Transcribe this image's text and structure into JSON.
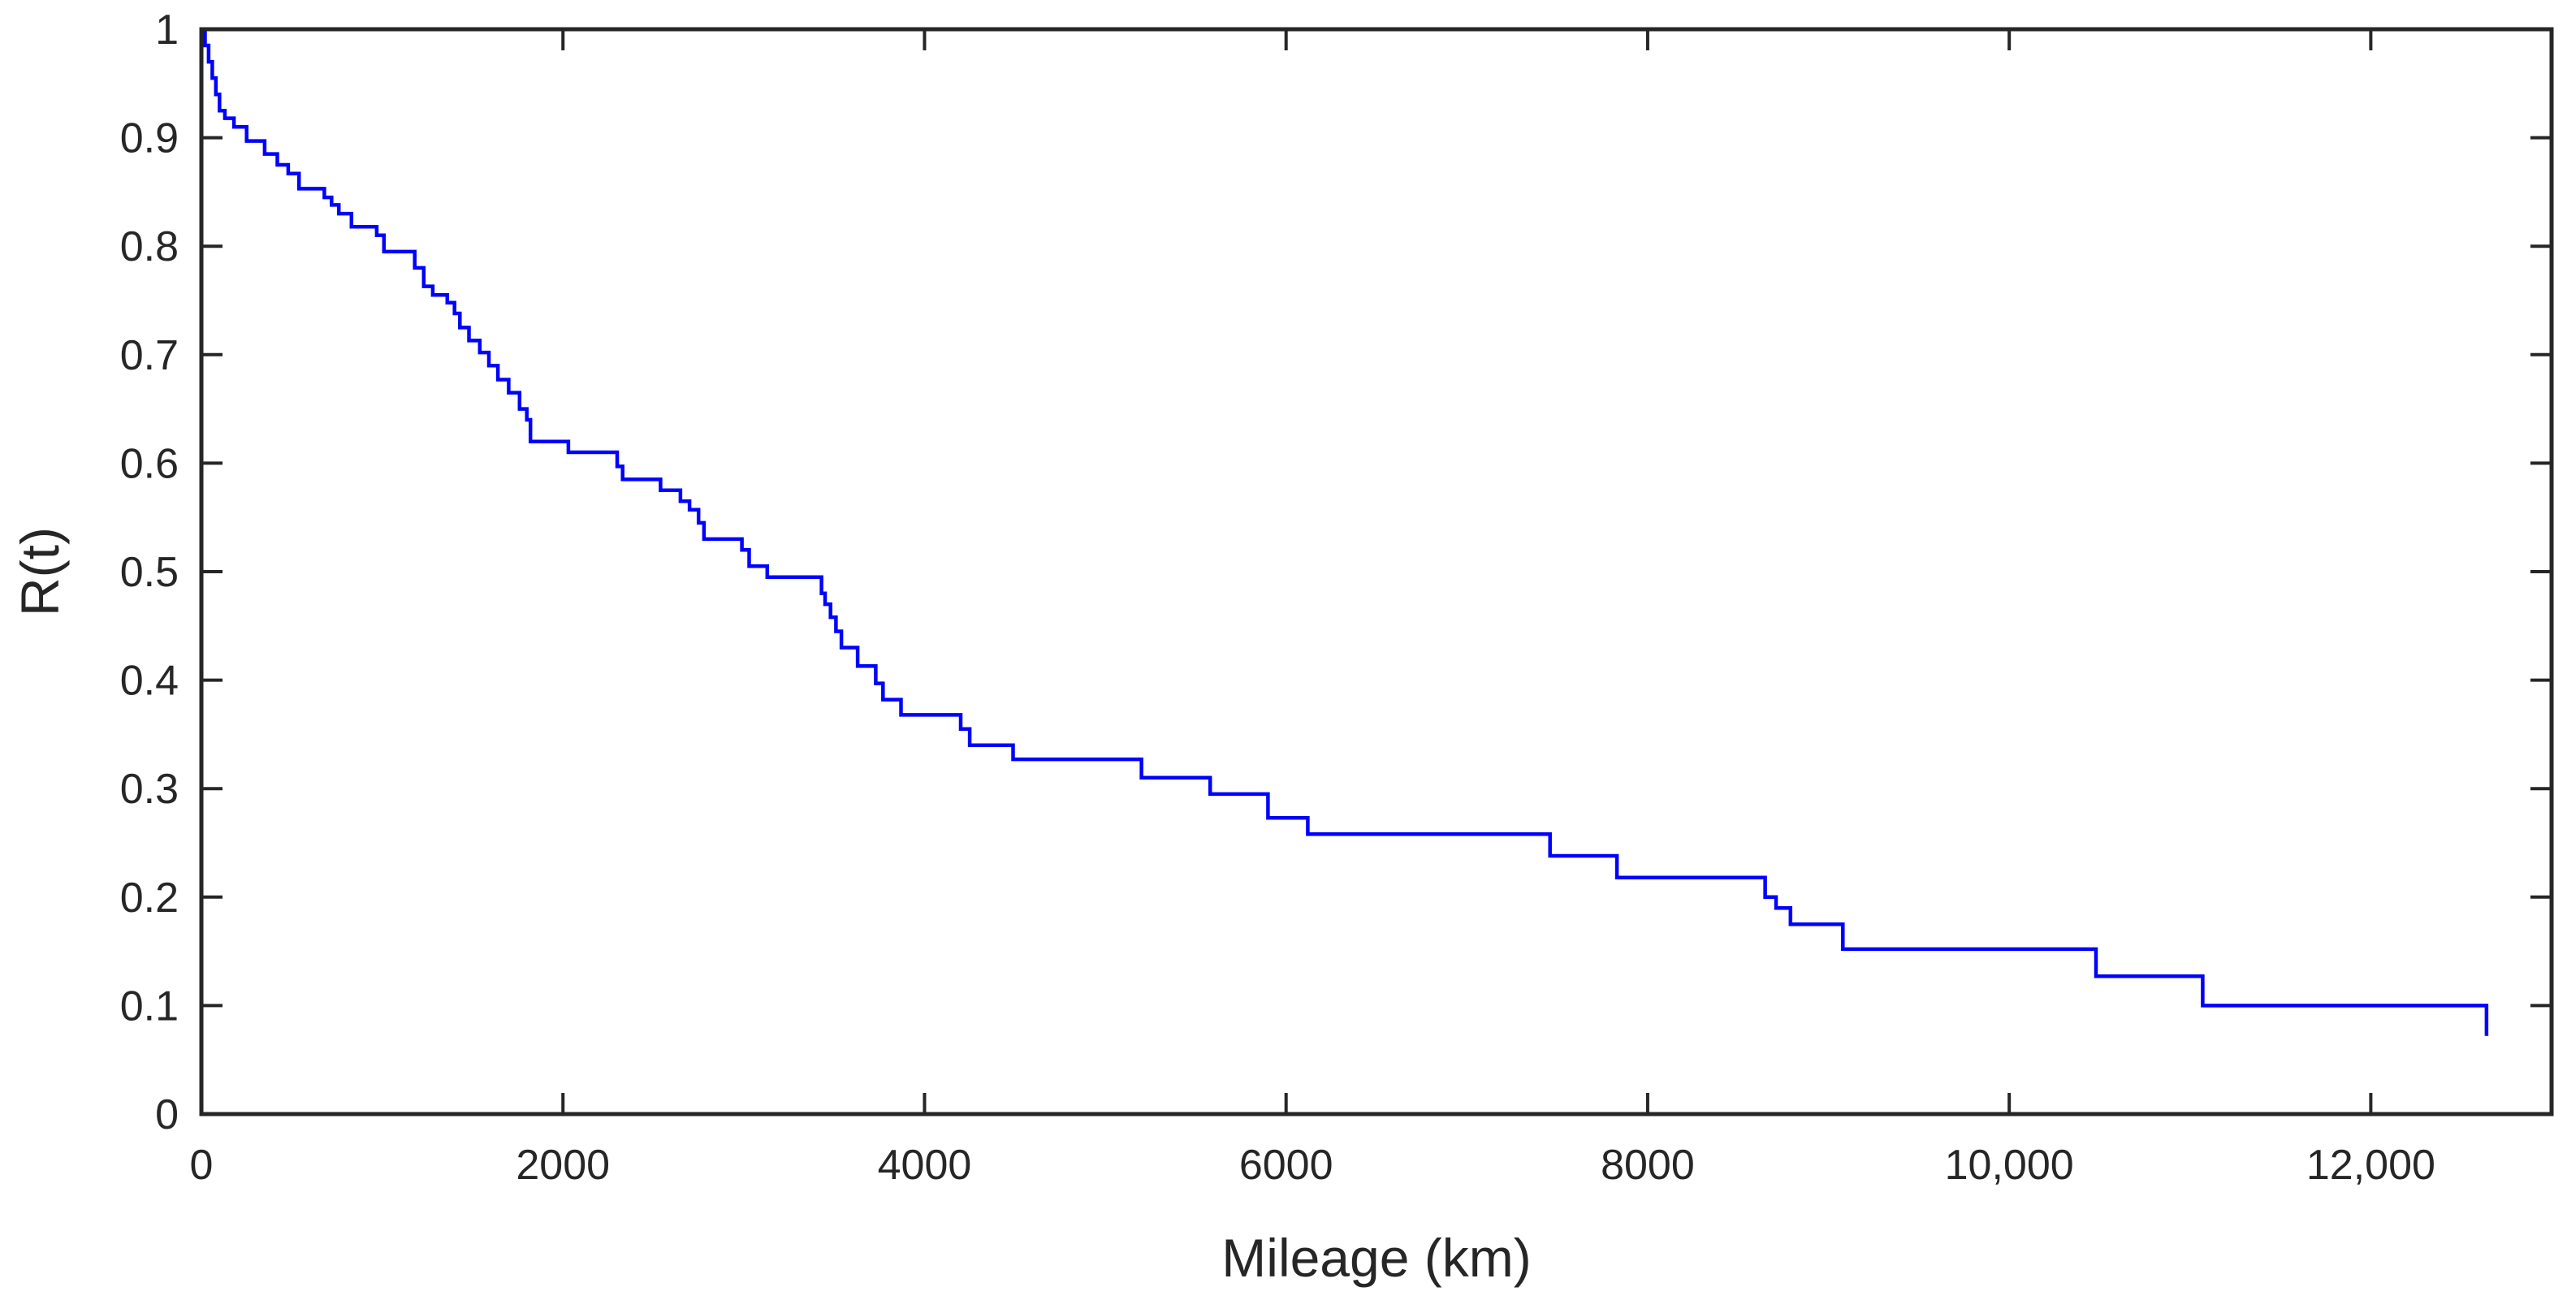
{
  "chart_data": {
    "type": "line",
    "step": true,
    "title": "",
    "xlabel": "Mileage (km)",
    "ylabel": "R(t)",
    "xlim": [
      0,
      13000
    ],
    "ylim": [
      0,
      1
    ],
    "x_ticks": [
      0,
      2000,
      4000,
      6000,
      8000,
      10000,
      12000
    ],
    "x_tick_labels": [
      "0",
      "2000",
      "4000",
      "6000",
      "8000",
      "10,000",
      "12,000"
    ],
    "y_ticks": [
      0,
      0.1,
      0.2,
      0.3,
      0.4,
      0.5,
      0.6,
      0.7,
      0.8,
      0.9,
      1
    ],
    "y_tick_labels": [
      "0",
      "0.1",
      "0.2",
      "0.3",
      "0.4",
      "0.5",
      "0.6",
      "0.7",
      "0.8",
      "0.9",
      "1"
    ],
    "grid": false,
    "colors": {
      "series": "#0000ff",
      "axis": "#262626"
    },
    "series": [
      {
        "x": [
          0,
          20,
          40,
          60,
          80,
          100,
          130,
          180,
          250,
          350,
          420,
          480,
          540,
          680,
          720,
          760,
          830,
          970,
          1010,
          1180,
          1230,
          1280,
          1360,
          1400,
          1430,
          1480,
          1540,
          1590,
          1640,
          1700,
          1760,
          1800,
          1820,
          2030,
          2300,
          2330,
          2540,
          2650,
          2700,
          2750,
          2780,
          2990,
          3030,
          3130,
          3430,
          3450,
          3480,
          3510,
          3540,
          3630,
          3730,
          3770,
          3870,
          4200,
          4250,
          4490,
          5200,
          5580,
          5900,
          6120,
          7460,
          7830,
          8650,
          8710,
          8790,
          9080,
          10480,
          11070,
          12640
        ],
        "y": [
          1,
          0.985,
          0.97,
          0.955,
          0.94,
          0.925,
          0.918,
          0.91,
          0.897,
          0.885,
          0.875,
          0.867,
          0.853,
          0.845,
          0.838,
          0.83,
          0.818,
          0.81,
          0.795,
          0.78,
          0.763,
          0.755,
          0.748,
          0.738,
          0.725,
          0.713,
          0.702,
          0.69,
          0.677,
          0.665,
          0.65,
          0.64,
          0.62,
          0.61,
          0.597,
          0.585,
          0.575,
          0.565,
          0.557,
          0.545,
          0.53,
          0.52,
          0.505,
          0.495,
          0.48,
          0.47,
          0.458,
          0.445,
          0.43,
          0.413,
          0.397,
          0.382,
          0.368,
          0.355,
          0.34,
          0.327,
          0.31,
          0.295,
          0.273,
          0.258,
          0.238,
          0.218,
          0.2,
          0.19,
          0.175,
          0.152,
          0.127,
          0.1,
          0.072
        ]
      }
    ]
  }
}
